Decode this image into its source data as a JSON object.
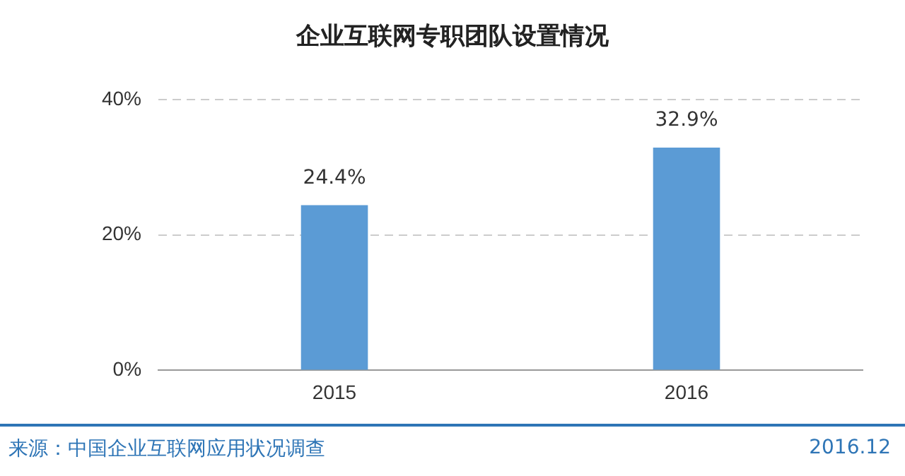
{
  "chart_data": {
    "type": "bar",
    "title": "企业互联网专职团队设置情况",
    "categories": [
      "2015",
      "2016"
    ],
    "values": [
      24.4,
      32.9
    ],
    "value_labels": [
      "24.4%",
      "32.9%"
    ],
    "color": "#5b9bd5",
    "ylim": [
      0,
      40
    ],
    "yticks": [
      {
        "value": 0,
        "label": "0%"
      },
      {
        "value": 20,
        "label": "20%"
      },
      {
        "value": 40,
        "label": "40%"
      }
    ],
    "grid": "y",
    "annotations": [
      "来源：中国企业互联网应用状况调查",
      "2016.12"
    ]
  }
}
